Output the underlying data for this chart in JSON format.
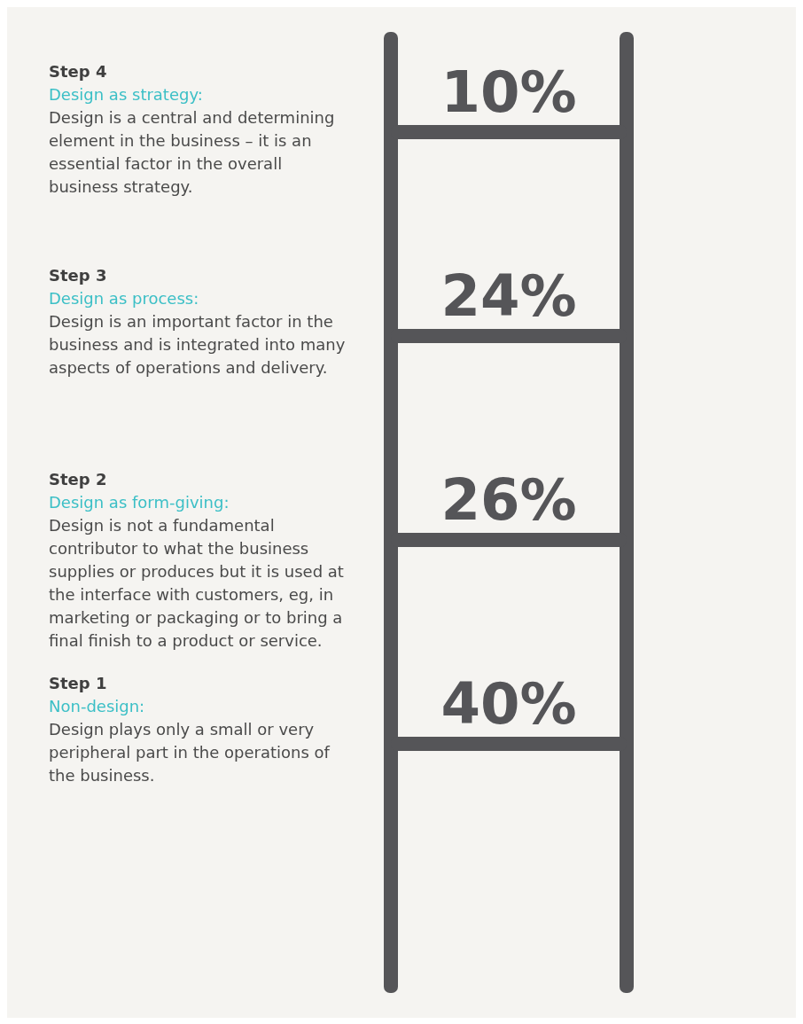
{
  "chart_data": {
    "type": "other",
    "categories": [
      "Step 4",
      "Step 3",
      "Step 2",
      "Step 1"
    ],
    "values": [
      10,
      24,
      26,
      40
    ],
    "value_labels": [
      "10%",
      "24%",
      "26%",
      "40%"
    ],
    "annotations": [
      "Design as strategy:",
      "Design is a central and determining element in the business – it is an essential factor in the overall business strategy.",
      "Design as process:",
      "Design is an important factor in the business and is integrated into many aspects of operations and delivery.",
      "Design as form-giving:",
      "Design is not a fundamental contributor to what the business supplies or produces but it is used at the interface with customers, eg, in marketing or packaging or to bring a final finish to a product or service.",
      "Non-design:",
      "Design plays only a small or very peripheral part in the operations of the business."
    ]
  }
}
